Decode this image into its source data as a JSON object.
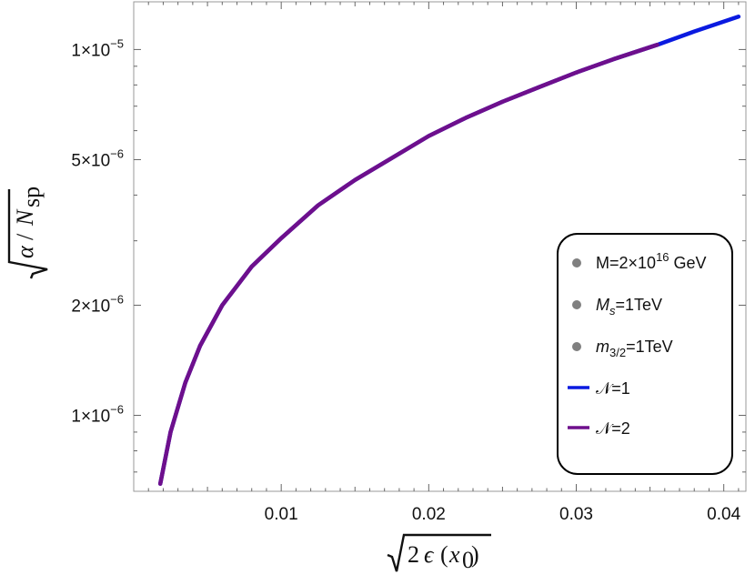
{
  "chart_data": {
    "type": "line",
    "title": "",
    "xlabel": "√(2 ε (x₀))",
    "ylabel": "√(α / N_sp)",
    "y_scale": "log",
    "xlim": [
      0.0,
      0.0415
    ],
    "ylim": [
      6.2e-07,
      1.35e-05
    ],
    "x_ticks": [
      {
        "value": 0.01,
        "label": "0.01"
      },
      {
        "value": 0.02,
        "label": "0.02"
      },
      {
        "value": 0.03,
        "label": "0.03"
      },
      {
        "value": 0.04,
        "label": "0.04"
      }
    ],
    "y_ticks": [
      {
        "value": 1e-06,
        "mant": "1.",
        "exp": "−6"
      },
      {
        "value": 2e-06,
        "mant": "2.",
        "exp": "−6"
      },
      {
        "value": 5e-06,
        "mant": "5.",
        "exp": "−6"
      },
      {
        "value": 1e-05,
        "mant": "1.",
        "exp": "−5"
      }
    ],
    "series": [
      {
        "name": "N=1",
        "color": "#0a1ae0",
        "x": [
          0.0018,
          0.0025,
          0.0035,
          0.0045,
          0.006,
          0.008,
          0.01,
          0.0125,
          0.015,
          0.0175,
          0.02,
          0.0225,
          0.025,
          0.0275,
          0.03,
          0.0325,
          0.0355,
          0.038,
          0.041
        ],
        "y": [
          6.5e-07,
          9e-07,
          1.23e-06,
          1.55e-06,
          2e-06,
          2.55e-06,
          3.05e-06,
          3.75e-06,
          4.4e-06,
          5.05e-06,
          5.8e-06,
          6.5e-06,
          7.2e-06,
          7.9e-06,
          8.65e-06,
          9.4e-06,
          1.03e-05,
          1.12e-05,
          1.23e-05
        ]
      },
      {
        "name": "N=2",
        "color": "#6e0f8c",
        "x": [
          0.0018,
          0.0025,
          0.0035,
          0.0045,
          0.006,
          0.008,
          0.01,
          0.0125,
          0.015,
          0.0175,
          0.02,
          0.0225,
          0.025,
          0.0275,
          0.03,
          0.0325,
          0.0355
        ],
        "y": [
          6.5e-07,
          9e-07,
          1.23e-06,
          1.55e-06,
          2e-06,
          2.55e-06,
          3.05e-06,
          3.75e-06,
          4.4e-06,
          5.05e-06,
          5.8e-06,
          6.5e-06,
          7.2e-06,
          7.9e-06,
          8.65e-06,
          9.4e-06,
          1.03e-05
        ]
      }
    ],
    "legend": {
      "placement": "lower-right",
      "points": [
        {
          "color": "#808080",
          "main": "M=2×10",
          "sup": "16",
          "rest": " GeV"
        },
        {
          "color": "#808080",
          "main": "M",
          "sub": "s",
          "rest": "=1TeV"
        },
        {
          "color": "#808080",
          "main": "m",
          "sub": "3/2",
          "rest": "=1TeV"
        }
      ],
      "lines": [
        {
          "color": "#0a1ae0",
          "label": "𝒩=1"
        },
        {
          "color": "#6e0f8c",
          "label": "𝒩=2"
        }
      ]
    }
  }
}
